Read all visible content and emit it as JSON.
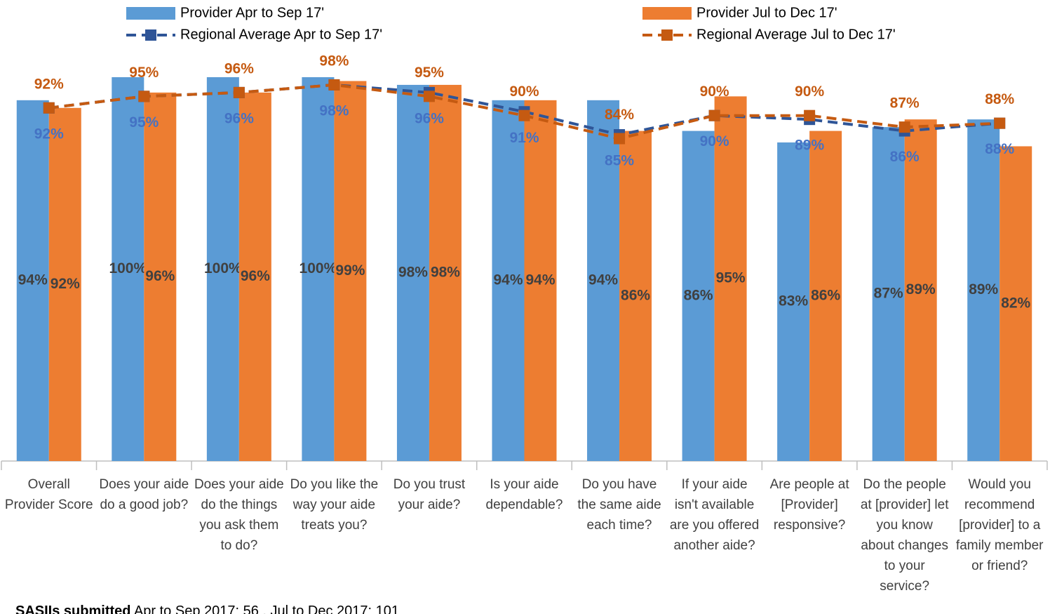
{
  "chart_data": {
    "type": "bar",
    "categories": [
      "Overall Provider Score",
      "Does your aide do a good job?",
      "Does your aide do the things you ask them to do?",
      "Do you like the way your aide treats you?",
      "Do you trust your aide?",
      "Is your aide dependable?",
      "Do you have the same aide each time?",
      "If your aide isn't available are you offered another aide?",
      "Are people at [Provider] responsive?",
      "Do the people at [provider] let you know about changes to your service?",
      "Would you recommend [provider] to a family member or friend?"
    ],
    "series": [
      {
        "name": "Provider Apr to Sep 17'",
        "type": "bar",
        "color": "#5b9bd5",
        "values": [
          94,
          100,
          100,
          100,
          98,
          94,
          94,
          86,
          83,
          87,
          89
        ],
        "value_labels": [
          "94%",
          "100%",
          "100%",
          "100%",
          "98%",
          "94%",
          "94%",
          "86%",
          "83%",
          "87%",
          "89%"
        ]
      },
      {
        "name": "Provider Jul to Dec 17'",
        "type": "bar",
        "color": "#ed7d31",
        "values": [
          92,
          96,
          96,
          99,
          98,
          94,
          86,
          95,
          86,
          89,
          82
        ],
        "value_labels": [
          "92%",
          "96%",
          "96%",
          "99%",
          "98%",
          "94%",
          "86%",
          "95%",
          "86%",
          "89%",
          "82%"
        ]
      },
      {
        "name": "Regional Average Apr to Sep 17'",
        "type": "line",
        "color": "#2f5597",
        "values": [
          92,
          95,
          96,
          98,
          96,
          91,
          85,
          90,
          89,
          86,
          88
        ],
        "value_labels": [
          "92%",
          "95%",
          "96%",
          "98%",
          "96%",
          "91%",
          "85%",
          "90%",
          "89%",
          "86%",
          "88%"
        ]
      },
      {
        "name": "Regional Average Jul to Dec 17'",
        "type": "line",
        "color": "#c55a11",
        "values": [
          92,
          95,
          96,
          98,
          95,
          90,
          84,
          90,
          90,
          87,
          88
        ],
        "value_labels": [
          "92%",
          "95%",
          "96%",
          "98%",
          "95%",
          "90%",
          "84%",
          "90%",
          "90%",
          "87%",
          "88%"
        ]
      }
    ],
    "ylim": [
      0,
      100
    ],
    "footnote_label": "SASIIs submitted",
    "footnote": "Apr to Sep 2017: 56 , Jul to Dec 2017: 101"
  }
}
